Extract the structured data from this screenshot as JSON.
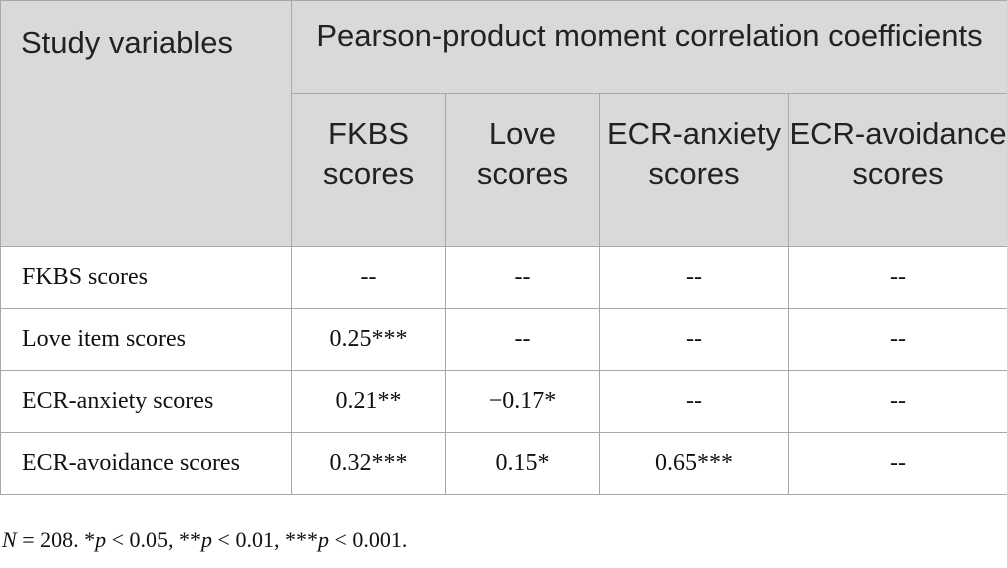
{
  "table": {
    "stub_header": "Study variables",
    "group_header": "Pearson-product moment correlation coefficients",
    "columns": [
      "FKBS scores",
      "Love scores",
      "ECR-anxiety scores",
      "ECR-avoidance scores"
    ],
    "rows": [
      {
        "label": "FKBS scores",
        "cells": [
          "--",
          "--",
          "--",
          "--"
        ]
      },
      {
        "label": "Love item scores",
        "cells": [
          "0.25***",
          "--",
          "--",
          "--"
        ]
      },
      {
        "label": "ECR-anxiety scores",
        "cells": [
          "0.21**",
          "−0.17*",
          "--",
          "--"
        ]
      },
      {
        "label": "ECR-avoidance scores",
        "cells": [
          "0.32***",
          "0.15*",
          "0.65***",
          "--"
        ]
      }
    ]
  },
  "footnote": {
    "n_symbol": "N",
    "n_value": " = 208. *",
    "p1": "p",
    "t1": " < 0.05, **",
    "p2": "p",
    "t2": " < 0.01, ***",
    "p3": "p",
    "t3": " < 0.001."
  }
}
